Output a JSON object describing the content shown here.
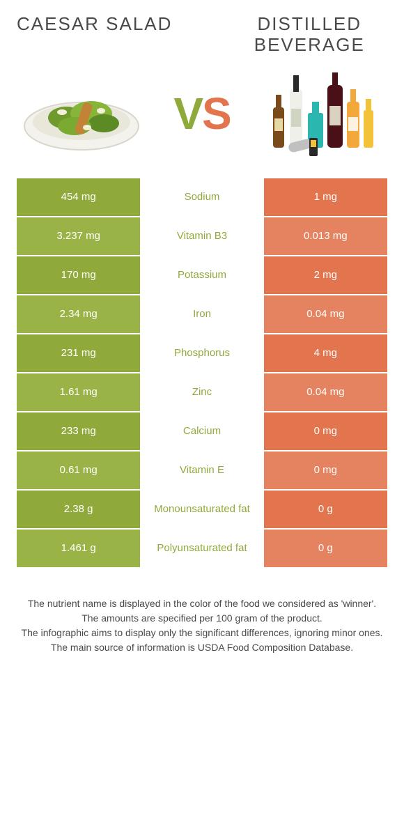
{
  "colors": {
    "left": "#90a93b",
    "left_alt": "#9ab347",
    "right": "#e2754e",
    "right_alt": "#e58260",
    "mid_text_left": "#90a93b",
    "mid_text_right": "#e2754e",
    "title": "#494949",
    "caption": "#494949"
  },
  "header": {
    "left_title": "CAESAR SALAD",
    "right_title": "DISTILLED BEVERAGE",
    "vs_v": "V",
    "vs_s": "S"
  },
  "rows": [
    {
      "nutrient": "Sodium",
      "left": "454 mg",
      "right": "1 mg",
      "winner": "left"
    },
    {
      "nutrient": "Vitamin B3",
      "left": "3.237 mg",
      "right": "0.013 mg",
      "winner": "left"
    },
    {
      "nutrient": "Potassium",
      "left": "170 mg",
      "right": "2 mg",
      "winner": "left"
    },
    {
      "nutrient": "Iron",
      "left": "2.34 mg",
      "right": "0.04 mg",
      "winner": "left"
    },
    {
      "nutrient": "Phosphorus",
      "left": "231 mg",
      "right": "4 mg",
      "winner": "left"
    },
    {
      "nutrient": "Zinc",
      "left": "1.61 mg",
      "right": "0.04 mg",
      "winner": "left"
    },
    {
      "nutrient": "Calcium",
      "left": "233 mg",
      "right": "0 mg",
      "winner": "left"
    },
    {
      "nutrient": "Vitamin E",
      "left": "0.61 mg",
      "right": "0 mg",
      "winner": "left"
    },
    {
      "nutrient": "Monounsaturated fat",
      "left": "2.38 g",
      "right": "0 g",
      "winner": "left"
    },
    {
      "nutrient": "Polyunsaturated fat",
      "left": "1.461 g",
      "right": "0 g",
      "winner": "left"
    }
  ],
  "caption": {
    "line1": "The nutrient name is displayed in the color of the food we considered as 'winner'.",
    "line2": "The amounts are specified per 100 gram of the product.",
    "line3": "The infographic aims to display only the significant differences, ignoring minor ones.",
    "line4": "The main source of information is USDA Food Composition Database."
  }
}
